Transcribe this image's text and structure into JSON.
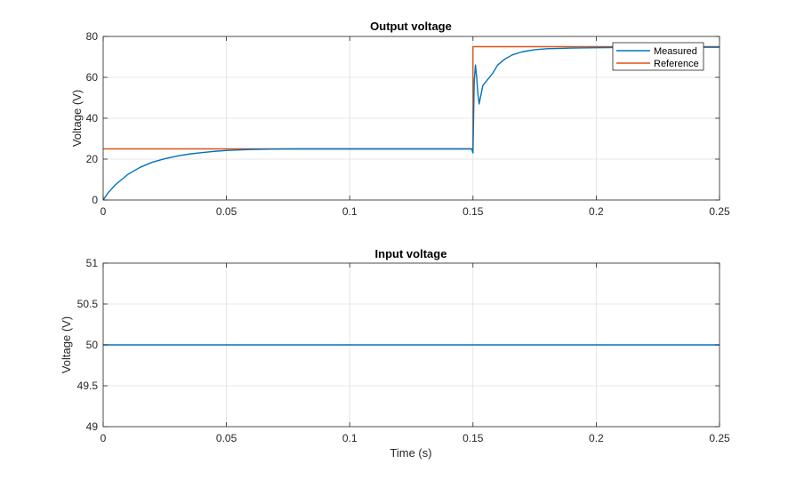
{
  "chart_data": [
    {
      "type": "line",
      "title": "Output voltage",
      "xlabel": "",
      "ylabel": "Voltage (V)",
      "xlim": [
        0,
        0.25
      ],
      "ylim": [
        0,
        80
      ],
      "xticks": [
        0,
        0.05,
        0.1,
        0.15,
        0.2,
        0.25
      ],
      "xtick_labels": [
        "0",
        "0.05",
        "0.1",
        "0.15",
        "0.2",
        "0.25"
      ],
      "yticks": [
        0,
        20,
        40,
        60,
        80
      ],
      "ytick_labels": [
        "0",
        "20",
        "40",
        "60",
        "80"
      ],
      "grid": true,
      "legend": "top-right",
      "series": [
        {
          "name": "Measured",
          "color": "#0072BD",
          "x": [
            0,
            0.002,
            0.005,
            0.01,
            0.015,
            0.02,
            0.025,
            0.03,
            0.035,
            0.04,
            0.045,
            0.05,
            0.055,
            0.06,
            0.07,
            0.08,
            0.09,
            0.1,
            0.11,
            0.12,
            0.13,
            0.14,
            0.1495,
            0.15,
            0.1505,
            0.151,
            0.1515,
            0.152,
            0.1525,
            0.153,
            0.154,
            0.156,
            0.158,
            0.16,
            0.163,
            0.166,
            0.17,
            0.175,
            0.18,
            0.19,
            0.2,
            0.21,
            0.22,
            0.23,
            0.24,
            0.25
          ],
          "y": [
            0,
            3.5,
            7.5,
            12.5,
            16,
            18.5,
            20.2,
            21.5,
            22.5,
            23.2,
            23.8,
            24.2,
            24.5,
            24.7,
            24.9,
            25,
            25,
            25,
            25,
            25,
            25,
            25,
            25,
            23,
            58,
            66,
            60,
            52,
            47,
            50,
            56,
            59,
            62,
            66,
            69,
            71,
            72.5,
            73.5,
            74,
            74.3,
            74.5,
            74.6,
            74.6,
            74.7,
            74.7,
            74.7
          ]
        },
        {
          "name": "Reference",
          "color": "#D95319",
          "x": [
            0,
            0.15,
            0.15,
            0.25
          ],
          "y": [
            25,
            25,
            75,
            75
          ]
        }
      ]
    },
    {
      "type": "line",
      "title": "Input voltage",
      "xlabel": "Time (s)",
      "ylabel": "Voltage (V)",
      "xlim": [
        0,
        0.25
      ],
      "ylim": [
        49,
        51
      ],
      "xticks": [
        0,
        0.05,
        0.1,
        0.15,
        0.2,
        0.25
      ],
      "xtick_labels": [
        "0",
        "0.05",
        "0.1",
        "0.15",
        "0.2",
        "0.25"
      ],
      "yticks": [
        49,
        49.5,
        50,
        50.5,
        51
      ],
      "ytick_labels": [
        "49",
        "49.5",
        "50",
        "50.5",
        "51"
      ],
      "grid": true,
      "series": [
        {
          "color": "#0072BD",
          "x": [
            0,
            0.25
          ],
          "y": [
            50,
            50
          ]
        }
      ]
    }
  ]
}
